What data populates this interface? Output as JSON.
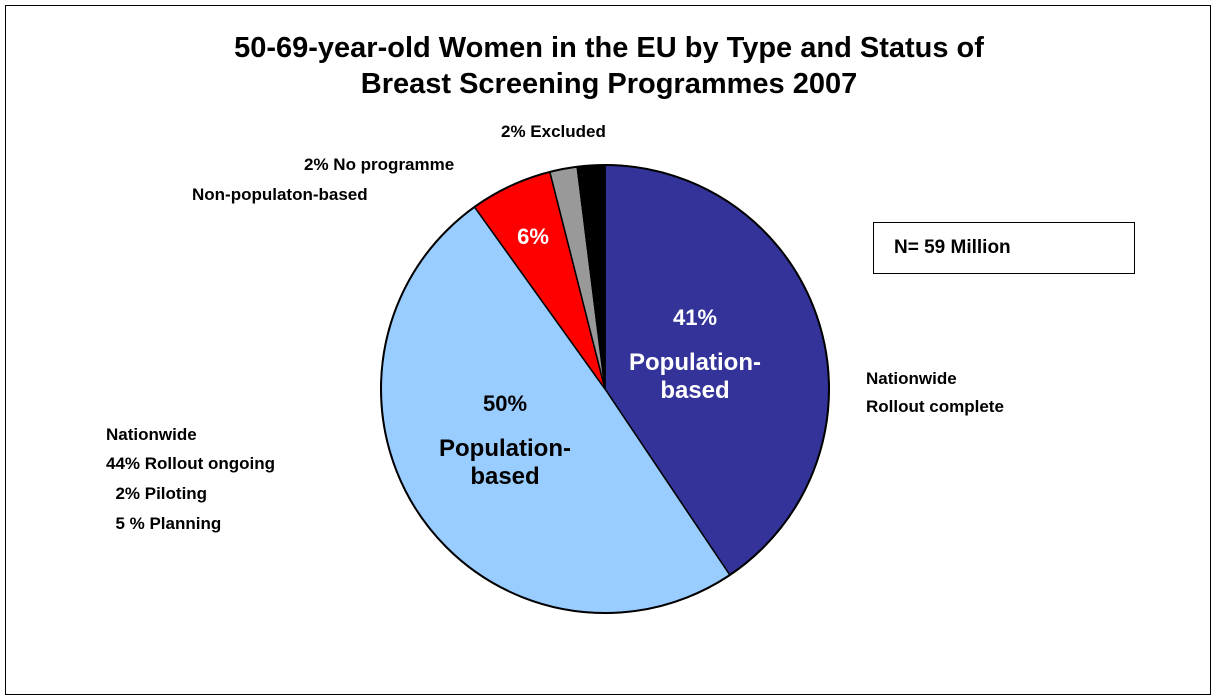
{
  "chart_data": {
    "type": "pie",
    "title": "50-69-year-old Women in the EU by Type and Status of Breast Screening Programmes 2007",
    "title_lines": [
      "50-69-year-old Women in the EU by Type and Status of",
      "Breast Screening Programmes 2007"
    ],
    "start_angle_deg": 0,
    "direction": "clockwise",
    "slices": [
      {
        "value": 41,
        "color": "#333399",
        "label_lines": [
          "41%",
          "Population-",
          "based"
        ],
        "label_color": "#ffffff"
      },
      {
        "value": 50,
        "color": "#99ccff",
        "label_lines": [
          "50%",
          "Population-",
          "based"
        ],
        "label_color": "#000000"
      },
      {
        "value": 6,
        "color": "#ff0000",
        "label_lines": [
          "6%"
        ],
        "label_color": "#ffffff"
      },
      {
        "value": 2,
        "color": "#999999",
        "label_lines": [],
        "label_color": "#000000"
      },
      {
        "value": 2,
        "color": "#000000",
        "label_lines": [],
        "label_color": "#000000"
      }
    ]
  },
  "annotations": {
    "nationwide_complete": [
      "Nationwide",
      "Rollout complete"
    ],
    "nationwide_ongoing": [
      "Nationwide",
      "44% Rollout ongoing",
      "  2% Piloting",
      "  5 % Planning"
    ],
    "excluded": "2% Excluded",
    "no_programme": "2% No programme",
    "non_population": "Non-populaton-based"
  },
  "n_box": "N= 59 Million"
}
